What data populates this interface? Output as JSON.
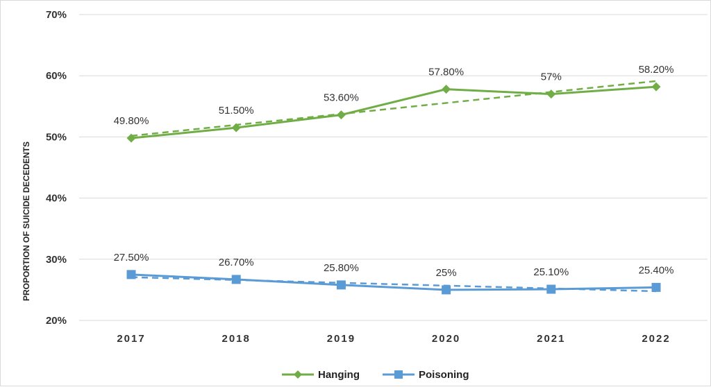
{
  "chart_data": {
    "type": "line",
    "title": "",
    "xlabel": "",
    "ylabel": "PROPORTION OF SUICIDE DECEDENTS",
    "ylim": [
      20,
      70
    ],
    "y_ticks": [
      "20%",
      "30%",
      "40%",
      "50%",
      "60%",
      "70%"
    ],
    "y_tick_values": [
      20,
      30,
      40,
      50,
      60,
      70
    ],
    "categories": [
      "2017",
      "2018",
      "2019",
      "2020",
      "2021",
      "2022"
    ],
    "grid": true,
    "legend_position": "bottom",
    "series": [
      {
        "name": "Hanging",
        "color": "#70ad47",
        "marker": "diamond",
        "values": [
          49.8,
          51.5,
          53.6,
          57.8,
          57,
          58.2
        ],
        "labels": [
          "49.80%",
          "51.50%",
          "53.60%",
          "57.80%",
          "57%",
          "58.20%"
        ],
        "trendline": "linear"
      },
      {
        "name": "Poisoning",
        "color": "#5b9bd5",
        "marker": "square",
        "values": [
          27.5,
          26.7,
          25.8,
          25,
          25.1,
          25.4
        ],
        "labels": [
          "27.50%",
          "26.70%",
          "25.80%",
          "25%",
          "25.10%",
          "25.40%"
        ],
        "trendline": "linear"
      }
    ]
  }
}
